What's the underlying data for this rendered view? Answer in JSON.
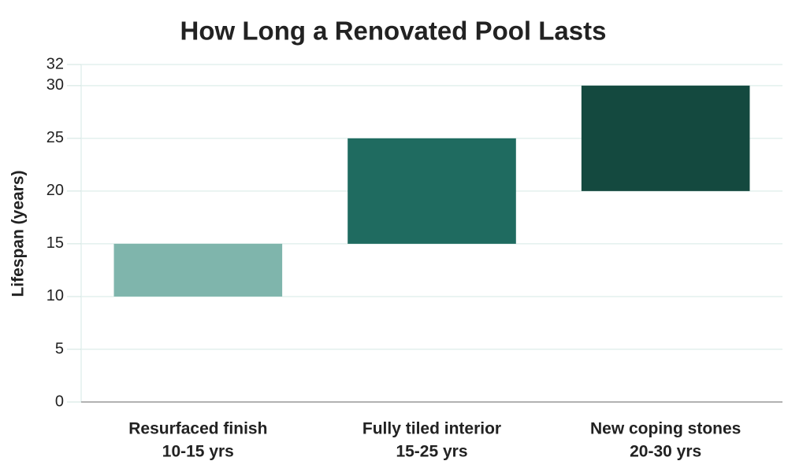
{
  "chart_data": {
    "type": "floating-bar",
    "title": "How Long a Renovated Pool Lasts",
    "y_label": "Lifespan (years)",
    "categories": [
      "Resurfaced finish",
      "Fully tiled interior",
      "New coping stones"
    ],
    "values": [
      [
        10,
        15
      ],
      [
        15,
        25
      ],
      [
        20,
        30
      ]
    ],
    "value_labels": [
      "10-15 yrs",
      "15-25 yrs",
      "20-30 yrs"
    ],
    "colors": [
      "#7fb5ac",
      "#1f6b60",
      "#14493f"
    ],
    "ylim": [
      0,
      32
    ],
    "yticks": [
      0,
      5,
      10,
      15,
      20,
      25,
      30,
      32
    ],
    "grid": true
  }
}
